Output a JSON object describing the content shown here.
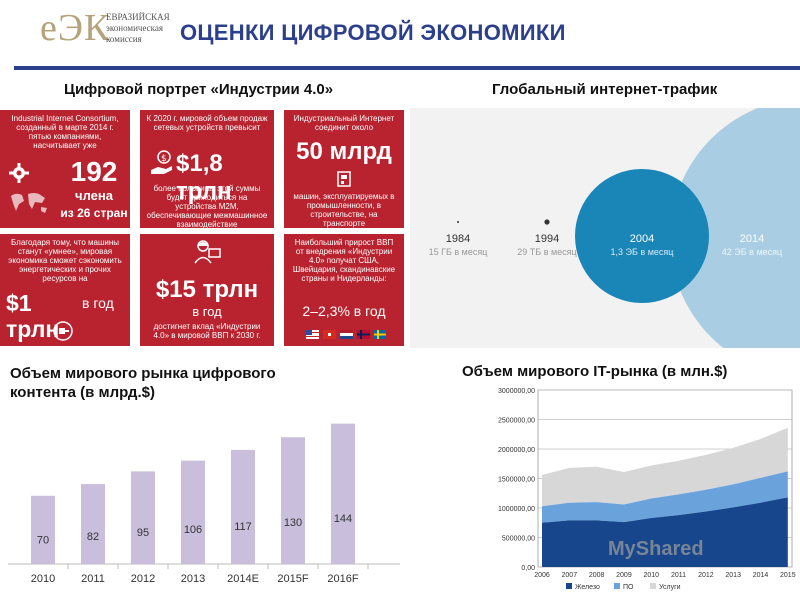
{
  "header": {
    "logo_mark": "еЭК",
    "logo_line1": "ЕВРАЗИЙСКАЯ",
    "logo_line2": "экономическая",
    "logo_line3": "комиссия",
    "title": "ОЦЕНКИ ЦИФРОВОЙ ЭКОНОМИКИ",
    "brand_color": "#2c3f8c",
    "tile_color": "#b8232f"
  },
  "industry": {
    "title": "Цифровой портрет «Индустрии 4.0»",
    "tiles": [
      {
        "caption": "Industrial Internet Consortium, созданный в марте 2014 г. пятью компаниями, насчитывает уже",
        "value": "192",
        "value2": "члена",
        "value3": "из 26 стран"
      },
      {
        "caption": "К 2020 г. мировой объем продаж сетевых устройств превысит",
        "value": "$1,8 трлн",
        "footer": "более половины этой суммы будет приходиться на устройства M2M, обеспечивающие межмашинное взаимодействие"
      },
      {
        "caption": "Индустриальный Интернет соединит около",
        "value": "50 млрд",
        "footer": "машин, эксплуатируемых в промышленности, в строительстве, на транспорте"
      },
      {
        "caption": "Благодаря тому, что машины станут «умнее», мировая экономика сможет сэкономить энергетических и прочих ресурсов на",
        "value": "$1 трлн",
        "value2": "в год"
      },
      {
        "value": "$15 трлн",
        "value2": "в год",
        "footer": "достигнет вклад «Индустрии 4.0» в мировой ВВП к 2030 г."
      },
      {
        "caption": "Наибольший прирост ВВП от внедрения «Индустрии 4.0» получат США, Швейцария, скандинавские страны и Нидерланды:",
        "value": "2–2,3% в год"
      }
    ]
  },
  "traffic": {
    "title": "Глобальный интернет-трафик",
    "items": [
      {
        "year": "1984",
        "label": "15 ГБ в месяц"
      },
      {
        "year": "1994",
        "label": "29 ТБ в месяц"
      },
      {
        "year": "2004",
        "label": "1,3 ЭБ в месяц"
      },
      {
        "year": "2014",
        "label": "42 ЭБ в месяц"
      }
    ]
  },
  "content_market": {
    "title_line1": "Объем мирового рынка цифрового",
    "title_line2": "контента (в млрд.$)"
  },
  "it_market": {
    "title": "Объем мирового IT-рынка (в млн.$)",
    "legend": [
      "Железо",
      "ПО",
      "Услуги"
    ]
  },
  "watermark": "MyShared",
  "chart_data": [
    {
      "type": "bar",
      "categories": [
        "2010",
        "2011",
        "2012",
        "2013",
        "2014E",
        "2015F",
        "2016F"
      ],
      "values": [
        70,
        82,
        95,
        106,
        117,
        130,
        144
      ],
      "title": "Объем мирового рынка цифрового контента (в млрд.$)",
      "xlabel": "",
      "ylabel": "",
      "ylim": [
        0,
        160
      ],
      "bar_color": "#c9bfdc"
    },
    {
      "type": "area",
      "title": "Объем мирового IT-рынка (в млн.$)",
      "x": [
        "2006",
        "2007",
        "2008",
        "2009",
        "2010",
        "2011",
        "2012",
        "2013",
        "2014",
        "2015"
      ],
      "series": [
        {
          "name": "Железо",
          "color": "#17468c",
          "values": [
            750000,
            790000,
            790000,
            760000,
            830000,
            880000,
            940000,
            1010000,
            1090000,
            1180000
          ]
        },
        {
          "name": "ПО",
          "color": "#6aa3dc",
          "values": [
            280000,
            300000,
            310000,
            300000,
            330000,
            350000,
            370000,
            390000,
            420000,
            440000
          ]
        },
        {
          "name": "Услуги",
          "color": "#d7d7d7",
          "values": [
            530000,
            590000,
            600000,
            550000,
            560000,
            570000,
            590000,
            620000,
            660000,
            740000
          ]
        }
      ],
      "stacked": true,
      "ylim": [
        0,
        3000000
      ],
      "yticks": [
        "0,00",
        "500000,00",
        "1000000,00",
        "1500000,00",
        "2000000,00",
        "2500000,00",
        "3000000,00"
      ],
      "grid": true,
      "legend": "bottom"
    },
    {
      "type": "bubble",
      "title": "Глобальный интернет-трафик",
      "categories": [
        "1984",
        "1994",
        "2004",
        "2014"
      ],
      "values_labels": [
        "15 ГБ в месяц",
        "29 ТБ в месяц",
        "1,3 ЭБ в месяц",
        "42 ЭБ в месяц"
      ]
    }
  ]
}
